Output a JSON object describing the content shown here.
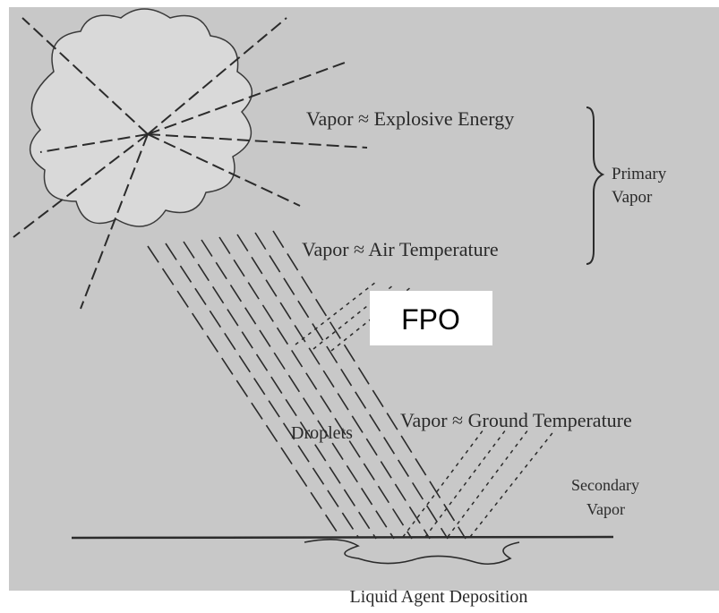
{
  "labels": {
    "explosive": "Vapor ≈ Explosive Energy",
    "primary": [
      "Primary",
      "Vapor"
    ],
    "air": "Vapor ≈ Air Temperature",
    "fpo": "FPO",
    "droplets": "Droplets",
    "ground": "Vapor ≈ Ground Temperature",
    "secondary": [
      "Secondary",
      "Vapor"
    ],
    "deposition": "Liquid Agent Deposition"
  }
}
